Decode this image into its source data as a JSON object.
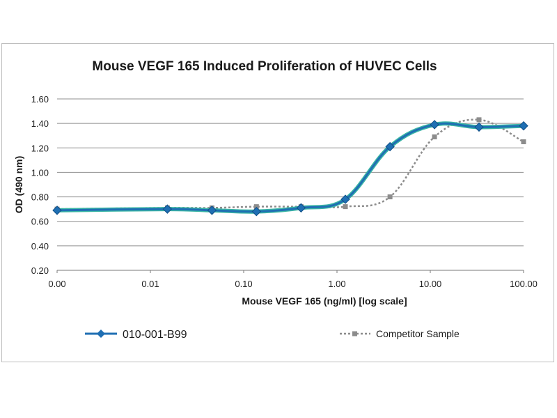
{
  "chart_data": {
    "type": "line",
    "title": "Mouse VEGF 165 Induced Proliferation of HUVEC Cells",
    "xlabel": "Mouse VEGF 165 (ng/ml) [log scale]",
    "ylabel": "OD (490 nm)",
    "xscale": "log",
    "x_tick_values": [
      0.001,
      0.01,
      0.1,
      1,
      10,
      100
    ],
    "x_tick_labels": [
      "0.00",
      "0.01",
      "0.10",
      "1.00",
      "10.00",
      "100.00"
    ],
    "xlim": [
      0.001,
      100
    ],
    "ylim": [
      0.2,
      1.6
    ],
    "y_ticks": [
      "0.20",
      "0.40",
      "0.60",
      "0.80",
      "1.00",
      "1.20",
      "1.40",
      "1.60"
    ],
    "grid": true,
    "legend_position": "bottom",
    "series": [
      {
        "name": "010-001-B99",
        "color": "#1f6fb3",
        "halo_color": "#3ab5a5",
        "marker": "diamond",
        "style": "solid",
        "x": [
          0.001,
          0.0152,
          0.0457,
          0.137,
          0.412,
          1.23,
          3.7,
          11.1,
          33.3,
          100
        ],
        "y": [
          0.69,
          0.7,
          0.69,
          0.68,
          0.71,
          0.78,
          1.21,
          1.39,
          1.37,
          1.38
        ]
      },
      {
        "name": "Competitor Sample",
        "color": "#8c8c8c",
        "marker": "square",
        "style": "dotted",
        "x": [
          0.001,
          0.0152,
          0.0457,
          0.137,
          0.412,
          1.23,
          3.7,
          11.1,
          33.3,
          100
        ],
        "y": [
          0.7,
          0.71,
          0.71,
          0.72,
          0.72,
          0.72,
          0.8,
          1.29,
          1.43,
          1.25
        ]
      }
    ]
  }
}
